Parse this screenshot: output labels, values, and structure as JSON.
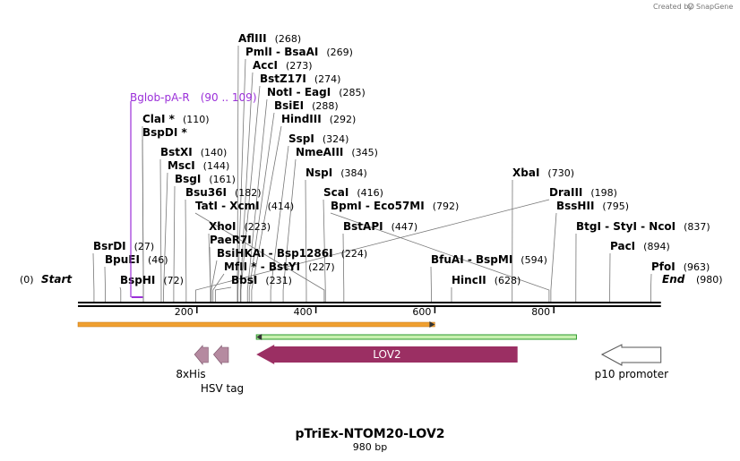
{
  "header": {
    "created_by": "Created by",
    "brand": "SnapGene"
  },
  "map": {
    "name": "pTriEx-NTOM20-LOV2",
    "length_label": "980 bp",
    "start": {
      "pos": "(0)",
      "label": "Start"
    },
    "end": {
      "label": "End",
      "pos": "(980)"
    }
  },
  "ruler_ticks": [
    {
      "value": 200,
      "label": "200"
    },
    {
      "value": 400,
      "label": "400"
    },
    {
      "value": 600,
      "label": "600"
    },
    {
      "value": 800,
      "label": "800"
    }
  ],
  "colors": {
    "backbone": "#000000",
    "orange_bar": "#f0a030",
    "green_bar": "#2a9a2a",
    "lov2": "#9b2f63",
    "small_tags": "#b58aa0",
    "primer": "#9b30d9"
  },
  "primer": {
    "name": "Bglob-pA-R",
    "range": "(90 .. 109)",
    "start": 90,
    "end": 109
  },
  "enzymes": [
    {
      "name": "AflIII",
      "pos": "(268)",
      "site": 268
    },
    {
      "name": "PmlI  -  BsaAI",
      "pos": "(269)",
      "site": 269
    },
    {
      "name": "AccI",
      "pos": "(273)",
      "site": 273
    },
    {
      "name": "BstZ17I",
      "pos": "(274)",
      "site": 274
    },
    {
      "name": "NotI  -  EagI",
      "pos": "(285)",
      "site": 285
    },
    {
      "name": "BsiEI",
      "pos": "(288)",
      "site": 288
    },
    {
      "name": "HindIII",
      "pos": "(292)",
      "site": 292
    },
    {
      "name": "ClaI *",
      "pos": "(110)",
      "site": 110
    },
    {
      "name": "BspDI *",
      "pos": "",
      "site": 110
    },
    {
      "name": "SspI",
      "pos": "(324)",
      "site": 324
    },
    {
      "name": "NmeAIII",
      "pos": "(345)",
      "site": 345
    },
    {
      "name": "BstXI",
      "pos": "(140)",
      "site": 140
    },
    {
      "name": "MscI",
      "pos": "(144)",
      "site": 144
    },
    {
      "name": "BsgI",
      "pos": "(161)",
      "site": 161
    },
    {
      "name": "NspI",
      "pos": "(384)",
      "site": 384
    },
    {
      "name": "XbaI",
      "pos": "(730)",
      "site": 730
    },
    {
      "name": "Bsu36I",
      "pos": "(182)",
      "site": 182
    },
    {
      "name": "DraIII",
      "pos": "(198)",
      "site": 198
    },
    {
      "name": "TatI  -  XcmI",
      "pos": "(414)",
      "site": 414
    },
    {
      "name": "ScaI",
      "pos": "(416)",
      "site": 416
    },
    {
      "name": "BpmI  -  Eco57MI",
      "pos": "(792)",
      "site": 792
    },
    {
      "name": "BssHII",
      "pos": "(795)",
      "site": 795
    },
    {
      "name": "XhoI",
      "pos": "(223)",
      "site": 223
    },
    {
      "name": "BstAPI",
      "pos": "(447)",
      "site": 447
    },
    {
      "name": "BtgI  -  StyI  -  NcoI",
      "pos": "(837)",
      "site": 837
    },
    {
      "name": "PaeR7I",
      "pos": "",
      "site": 223
    },
    {
      "name": "BsrDI",
      "pos": "(27)",
      "site": 27
    },
    {
      "name": "BsiHKAI  -  Bsp1286I",
      "pos": "(224)",
      "site": 224
    },
    {
      "name": "PacI",
      "pos": "(894)",
      "site": 894
    },
    {
      "name": "BpuEI",
      "pos": "(46)",
      "site": 46
    },
    {
      "name": "MfII *  -  BstYI",
      "pos": "(227)",
      "site": 227
    },
    {
      "name": "BfuAI  -  BspMI",
      "pos": "(594)",
      "site": 594
    },
    {
      "name": "PfoI",
      "pos": "(963)",
      "site": 963
    },
    {
      "name": "BspHI",
      "pos": "(72)",
      "site": 72
    },
    {
      "name": "BbsI",
      "pos": "(231)",
      "site": 231
    },
    {
      "name": "HincII",
      "pos": "(628)",
      "site": 628
    }
  ],
  "features": [
    {
      "name": "",
      "type": "orange-bar",
      "start": 0,
      "end": 600
    },
    {
      "name": "",
      "type": "green-bar",
      "start": 300,
      "end": 838
    },
    {
      "name": "LOV2",
      "type": "arrow-left",
      "start": 300,
      "end": 739
    },
    {
      "name": "8xHis",
      "type": "small-left",
      "start": 196,
      "end": 219
    },
    {
      "name": "HSV tag",
      "type": "small-left",
      "start": 228,
      "end": 253
    },
    {
      "name": "p10 promoter",
      "type": "outline-left",
      "start": 881,
      "end": 980
    }
  ]
}
